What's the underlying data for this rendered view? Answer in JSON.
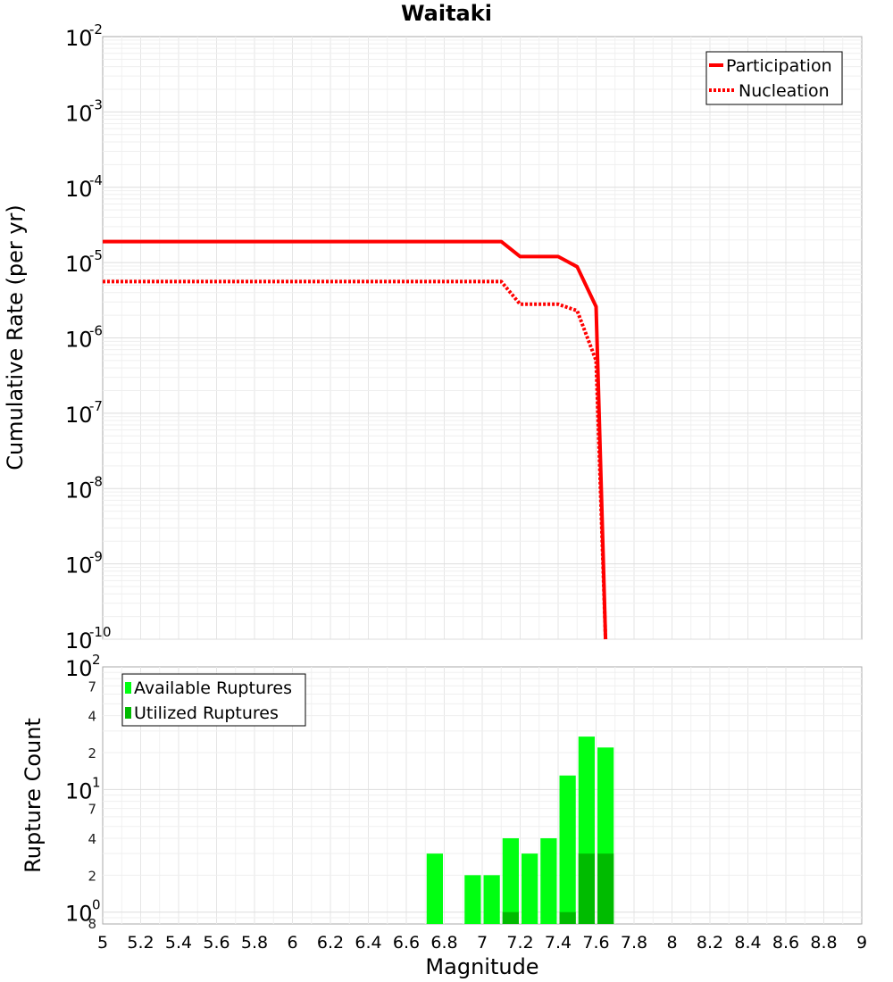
{
  "chart_data": [
    {
      "type": "line",
      "title": "Waitaki",
      "xlabel": "",
      "ylabel": "Cumulative Rate (per yr)",
      "yscale": "log",
      "xlim": [
        5,
        9
      ],
      "ylim": [
        1e-10,
        0.01
      ],
      "y_tick_exponents": [
        "-10",
        "-9",
        "-8",
        "-7",
        "-6",
        "-5",
        "-4",
        "-3",
        "-2"
      ],
      "y_tick_base": "10",
      "legend": {
        "position": "top-right",
        "entries": [
          "Participation",
          "Nucleation"
        ]
      },
      "series": [
        {
          "name": "Participation",
          "style": "solid",
          "color": "#ff0000",
          "x": [
            5.0,
            7.1,
            7.2,
            7.4,
            7.5,
            7.6,
            7.65
          ],
          "y": [
            1.9e-05,
            1.9e-05,
            1.2e-05,
            1.2e-05,
            8.8e-06,
            2.6e-06,
            1e-10
          ]
        },
        {
          "name": "Nucleation",
          "style": "dotted",
          "color": "#ff0000",
          "x": [
            5.0,
            7.1,
            7.2,
            7.4,
            7.5,
            7.6,
            7.65
          ],
          "y": [
            5.6e-06,
            5.6e-06,
            2.8e-06,
            2.8e-06,
            2.3e-06,
            5e-07,
            1e-10
          ]
        }
      ]
    },
    {
      "type": "bar",
      "xlabel": "Magnitude",
      "ylabel": "Rupture Count",
      "yscale": "log",
      "xlim": [
        5,
        9
      ],
      "ylim": [
        0.8,
        100
      ],
      "x_ticks": [
        "5",
        "5.2",
        "5.4",
        "5.6",
        "5.8",
        "6",
        "6.2",
        "6.4",
        "6.6",
        "6.8",
        "7",
        "7.2",
        "7.4",
        "7.6",
        "7.8",
        "8",
        "8.2",
        "8.4",
        "8.6",
        "8.8",
        "9"
      ],
      "y_major": [
        {
          "base": "10",
          "exp": "0",
          "value": 1
        },
        {
          "base": "10",
          "exp": "1",
          "value": 10
        },
        {
          "base": "10",
          "exp": "2",
          "value": 100
        }
      ],
      "y_minor": [
        {
          "label": "8",
          "value": 0.8
        },
        {
          "label": "2",
          "value": 2
        },
        {
          "label": "4",
          "value": 4
        },
        {
          "label": "7",
          "value": 7
        },
        {
          "label": "2",
          "value": 20
        },
        {
          "label": "4",
          "value": 40
        },
        {
          "label": "7",
          "value": 70
        }
      ],
      "legend": {
        "position": "top-left",
        "entries": [
          "Available Ruptures",
          "Utilized Ruptures"
        ]
      },
      "bin_width": 0.1,
      "series": [
        {
          "name": "Available Ruptures",
          "color": "#00ff11",
          "x": [
            6.7,
            6.9,
            7.0,
            7.1,
            7.2,
            7.3,
            7.4,
            7.5,
            7.6
          ],
          "values": [
            3,
            2,
            2,
            4,
            3,
            4,
            13,
            27,
            22
          ]
        },
        {
          "name": "Utilized Ruptures",
          "color": "#00bb00",
          "x": [
            7.1,
            7.4,
            7.5,
            7.6
          ],
          "values": [
            1,
            1,
            3,
            3
          ]
        }
      ]
    }
  ]
}
